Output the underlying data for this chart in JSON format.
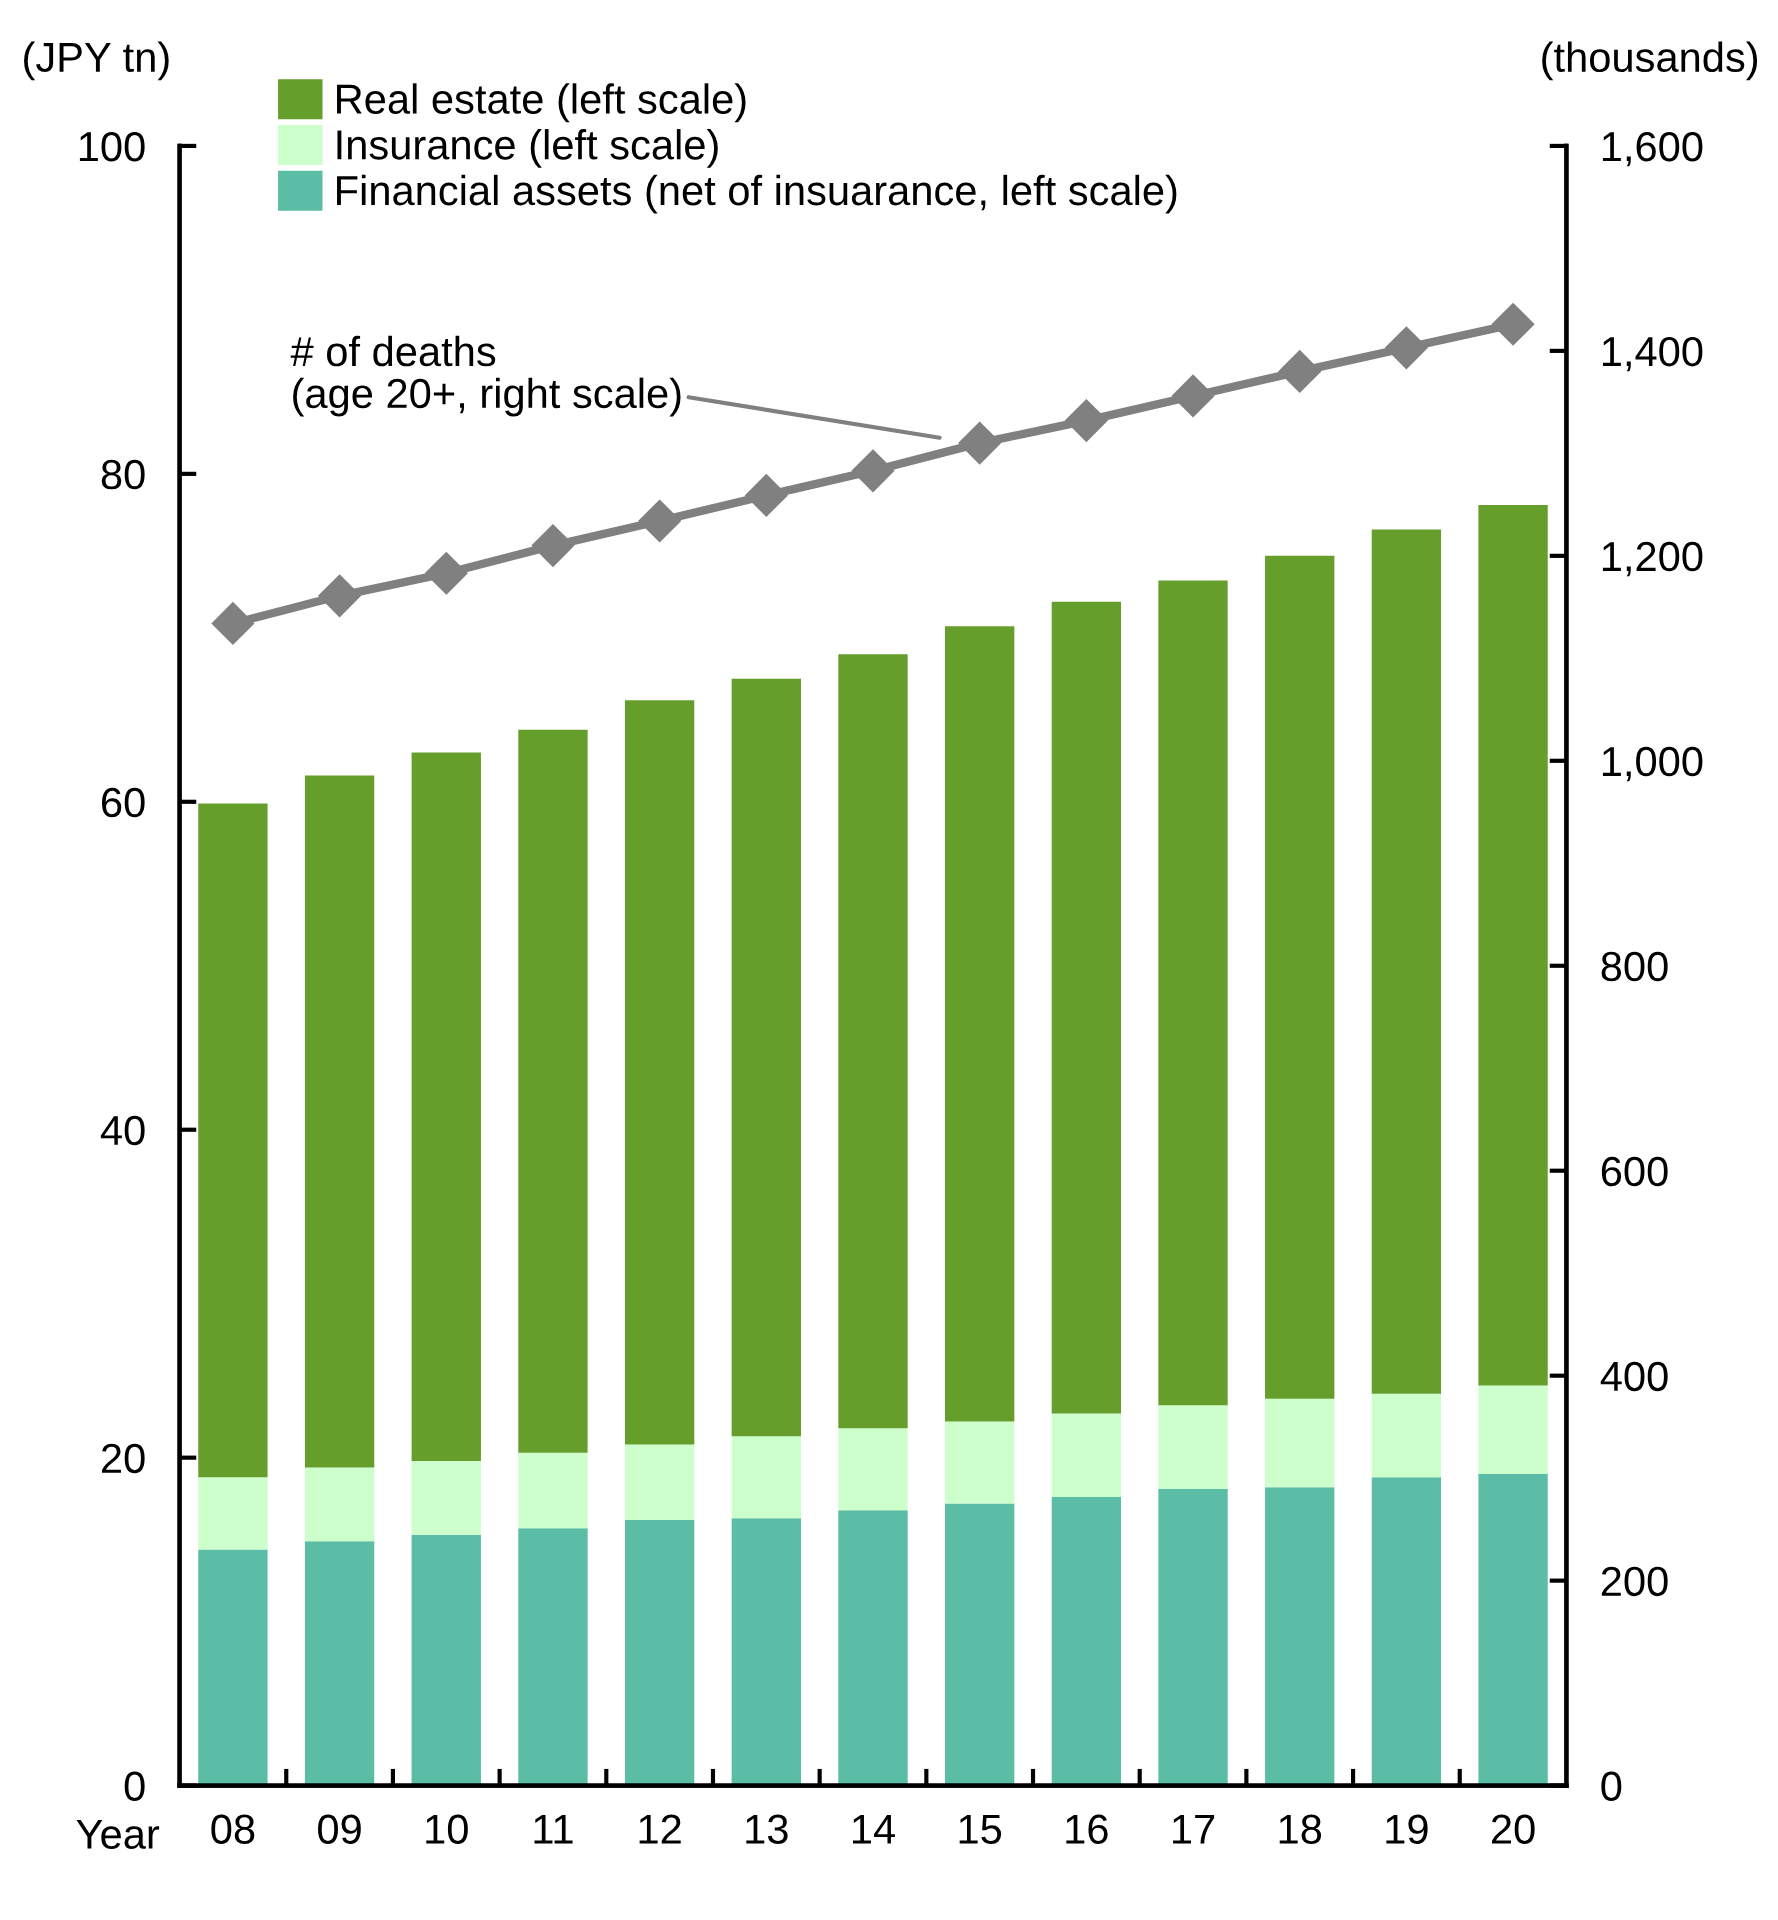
{
  "chart_data": {
    "type": "bar",
    "stacked": true,
    "categories": [
      "08",
      "09",
      "10",
      "11",
      "12",
      "13",
      "14",
      "15",
      "16",
      "17",
      "18",
      "19",
      "20"
    ],
    "xlabel": "Year",
    "ylabel": "(JPY tn)",
    "y2label": "(thousands)",
    "series": [
      {
        "name": "Financial assets (net of insuarance, left scale)",
        "color": "#5bbda5",
        "values": [
          14.4,
          14.9,
          15.3,
          15.7,
          16.2,
          16.3,
          16.8,
          17.2,
          17.6,
          18.1,
          18.2,
          18.8,
          19.0
        ]
      },
      {
        "name": "Insurance (left scale)",
        "color": "#ccffcc",
        "values": [
          4.4,
          4.5,
          4.5,
          4.6,
          4.6,
          5.0,
          5.0,
          5.0,
          5.1,
          5.1,
          5.4,
          5.1,
          5.4
        ]
      },
      {
        "name": "Real estate (left scale)",
        "color": "#669e2c",
        "values": [
          41.1,
          42.2,
          43.2,
          44.1,
          45.4,
          46.2,
          47.2,
          48.5,
          49.5,
          50.3,
          51.4,
          52.7,
          53.7
        ]
      },
      {
        "type": "line",
        "axis": "y2",
        "color": "#808080",
        "marker": "diamond",
        "values": [
          1134,
          1161,
          1183,
          1210,
          1234,
          1259,
          1283,
          1310,
          1332,
          1356,
          1380,
          1403,
          1426
        ]
      }
    ],
    "ylim": [
      0,
      100
    ],
    "yticks": [
      0,
      20,
      40,
      60,
      80,
      100
    ],
    "y2lim": [
      0,
      1600
    ],
    "y2ticks": [
      0,
      200,
      400,
      600,
      800,
      {
        "value": 1000,
        "label": "1,000"
      },
      {
        "value": 1200,
        "label": "1,200"
      },
      {
        "value": 1400,
        "label": "1,400"
      },
      {
        "value": 1600,
        "label": "1,600"
      }
    ],
    "annotations": [
      "# of deaths\n(age 20+, right scale)"
    ],
    "legend": "top left",
    "grid": false
  }
}
